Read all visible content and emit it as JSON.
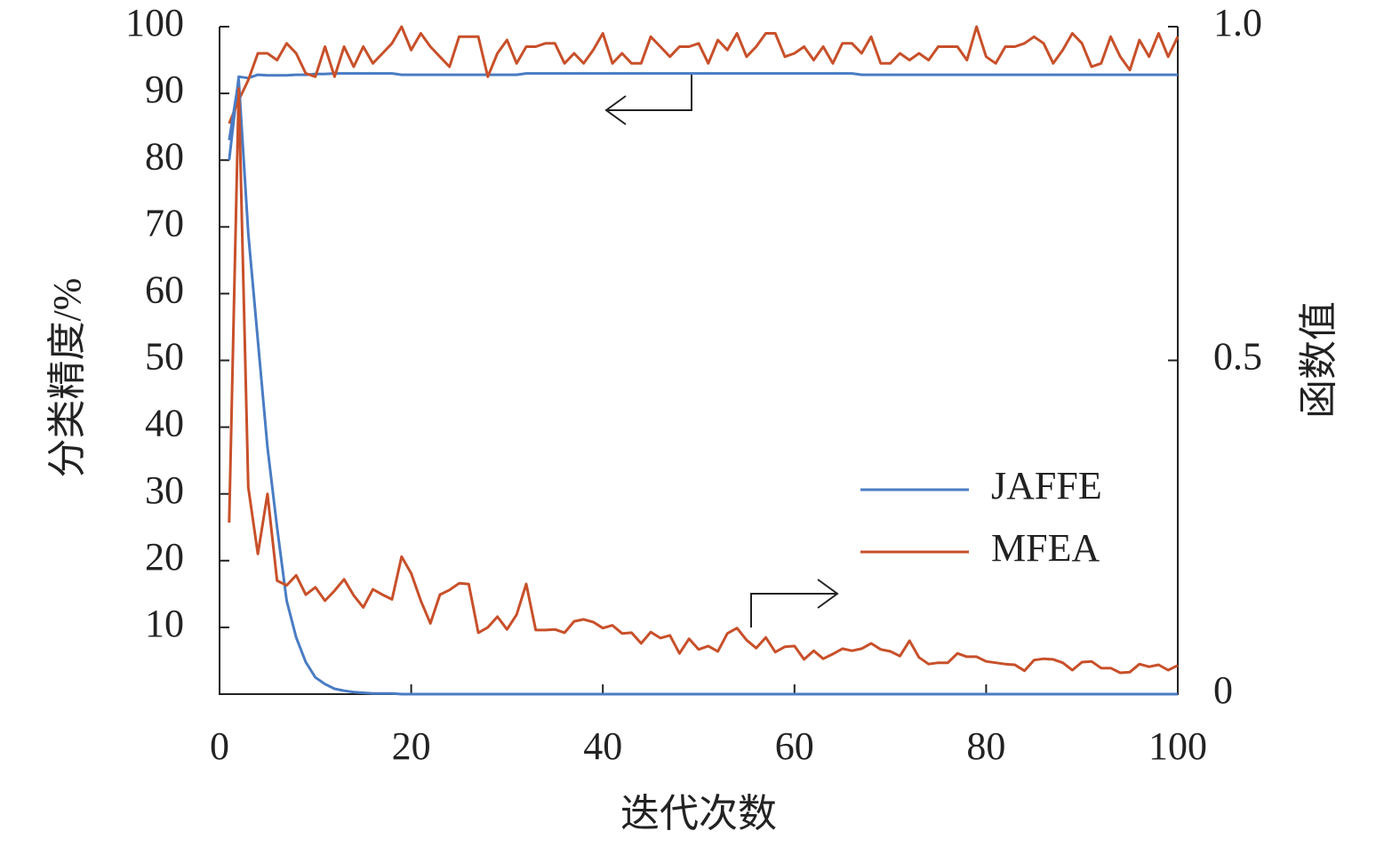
{
  "chart_data": {
    "type": "line",
    "xlabel": "迭代次数",
    "ylabel": "分类精度/%",
    "y2label": "函数值",
    "x": [
      1,
      2,
      3,
      4,
      5,
      6,
      7,
      8,
      9,
      10,
      11,
      12,
      13,
      14,
      15,
      16,
      17,
      18,
      19,
      20,
      21,
      22,
      23,
      24,
      25,
      26,
      27,
      28,
      29,
      30,
      31,
      32,
      33,
      34,
      35,
      36,
      37,
      38,
      39,
      40,
      41,
      42,
      43,
      44,
      45,
      46,
      47,
      48,
      49,
      50,
      51,
      52,
      53,
      54,
      55,
      56,
      57,
      58,
      59,
      60,
      61,
      62,
      63,
      64,
      65,
      66,
      67,
      68,
      69,
      70,
      71,
      72,
      73,
      74,
      75,
      76,
      77,
      78,
      79,
      80,
      81,
      82,
      83,
      84,
      85,
      86,
      87,
      88,
      89,
      90,
      91,
      92,
      93,
      94,
      95,
      96,
      97,
      98,
      99,
      100
    ],
    "xlim": [
      0,
      100
    ],
    "xticks": [
      0,
      20,
      40,
      60,
      80,
      100
    ],
    "ylim": [
      0,
      100
    ],
    "yticks": [
      10,
      20,
      30,
      40,
      50,
      60,
      70,
      80,
      90,
      100
    ],
    "y2lim": [
      0,
      1
    ],
    "y2ticks": [
      0,
      0.5,
      {
        "value": 1,
        "label": "1.0"
      }
    ],
    "legend": "lower right",
    "series": [
      {
        "name": "JAFFE",
        "color": "#4a7cc4",
        "values": [
          80,
          92.5,
          92.3,
          92.8,
          92.7,
          92.7,
          92.7,
          92.8,
          92.8,
          92.9,
          92.9,
          93,
          93,
          93,
          93,
          93,
          93,
          93,
          92.8,
          92.8,
          92.8,
          92.8,
          92.8,
          92.8,
          92.8,
          92.8,
          92.8,
          92.8,
          92.8,
          92.8,
          92.8,
          93,
          93,
          93,
          93,
          93,
          93,
          93,
          93,
          93,
          93,
          93,
          93,
          93,
          93,
          93,
          93,
          93,
          93,
          93,
          93,
          93,
          93,
          93,
          93,
          93,
          93,
          93,
          93,
          93,
          93,
          93,
          93,
          93,
          93,
          93,
          92.8,
          92.8,
          92.8,
          92.8,
          92.8,
          92.8,
          92.8,
          92.8,
          92.8,
          92.8,
          92.8,
          92.8,
          92.8,
          92.8,
          92.8,
          92.8,
          92.8,
          92.8,
          92.8,
          92.8,
          92.8,
          92.8,
          92.8,
          92.8,
          92.8,
          92.8,
          92.8,
          92.8,
          92.8,
          92.8,
          92.8,
          92.8,
          92.8,
          92.8
        ]
      },
      {
        "name": "MFEA",
        "color": "#c8502a",
        "values": [
          85.5,
          89,
          92,
          96,
          96,
          95,
          97.5,
          96,
          93,
          92.5,
          97,
          92.5,
          97,
          94,
          97,
          94.5,
          96,
          97.5,
          100,
          96.5,
          99,
          97,
          95.5,
          94,
          98.5,
          98.5,
          98.5,
          92.5,
          96,
          98,
          94.5,
          97,
          97,
          97.5,
          97.5,
          94.5,
          96,
          94.5,
          96.5,
          99,
          94.5,
          96,
          94.5,
          94.5,
          98.5,
          97,
          95.5,
          97,
          97,
          97.5,
          94.5,
          98,
          96.5,
          99,
          95.5,
          97,
          99,
          99,
          95.5,
          96,
          97,
          95,
          97,
          94.5,
          97.5,
          97.5,
          96,
          98.5,
          94.5,
          94.5,
          96,
          95,
          96,
          95,
          97,
          97,
          97,
          95,
          100,
          95.5,
          94.5,
          97,
          97,
          97.5,
          98.5,
          97.5,
          94.5,
          96.5,
          99,
          97.5,
          94,
          94.5,
          98.5,
          95.5,
          93.5,
          98,
          95.5,
          99,
          95.5,
          98.5
        ]
      },
      {
        "name": "JAFFE",
        "color": "#4a7cc4",
        "axis": "y2",
        "values": [
          0.83,
          0.92,
          0.69,
          0.53,
          0.37,
          0.25,
          0.14,
          0.085,
          0.048,
          0.025,
          0.015,
          0.008,
          0.005,
          0.003,
          0.002,
          0.001,
          0.001,
          0.001,
          0,
          0,
          0,
          0,
          0,
          0,
          0,
          0,
          0,
          0,
          0,
          0,
          0,
          0,
          0,
          0,
          0,
          0,
          0,
          0,
          0,
          0,
          0,
          0,
          0,
          0,
          0,
          0,
          0,
          0,
          0,
          0,
          0,
          0,
          0,
          0,
          0,
          0,
          0,
          0,
          0,
          0,
          0,
          0,
          0,
          0,
          0,
          0,
          0,
          0,
          0,
          0,
          0,
          0,
          0,
          0,
          0,
          0,
          0,
          0,
          0,
          0,
          0,
          0,
          0,
          0,
          0,
          0,
          0,
          0,
          0,
          0,
          0,
          0,
          0,
          0,
          0,
          0,
          0,
          0,
          0,
          0
        ]
      },
      {
        "name": "MFEA",
        "color": "#c8502a",
        "axis": "y2",
        "values": [
          0.257,
          0.907,
          0.31,
          0.21,
          0.3,
          0.17,
          0.163,
          0.178,
          0.149,
          0.16,
          0.14,
          0.155,
          0.172,
          0.148,
          0.13,
          0.157,
          0.149,
          0.142,
          0.206,
          0.181,
          0.14,
          0.106,
          0.149,
          0.156,
          0.166,
          0.165,
          0.092,
          0.1,
          0.116,
          0.097,
          0.119,
          0.165,
          0.096,
          0.096,
          0.097,
          0.092,
          0.109,
          0.112,
          0.108,
          0.099,
          0.103,
          0.091,
          0.092,
          0.076,
          0.093,
          0.084,
          0.088,
          0.061,
          0.083,
          0.067,
          0.072,
          0.064,
          0.091,
          0.099,
          0.081,
          0.069,
          0.085,
          0.063,
          0.071,
          0.072,
          0.052,
          0.065,
          0.053,
          0.06,
          0.068,
          0.065,
          0.068,
          0.076,
          0.067,
          0.064,
          0.057,
          0.08,
          0.055,
          0.045,
          0.047,
          0.047,
          0.061,
          0.056,
          0.056,
          0.049,
          0.047,
          0.045,
          0.044,
          0.035,
          0.051,
          0.053,
          0.052,
          0.047,
          0.036,
          0.048,
          0.049,
          0.039,
          0.039,
          0.032,
          0.033,
          0.045,
          0.041,
          0.044,
          0.036,
          0.043
        ]
      }
    ]
  }
}
